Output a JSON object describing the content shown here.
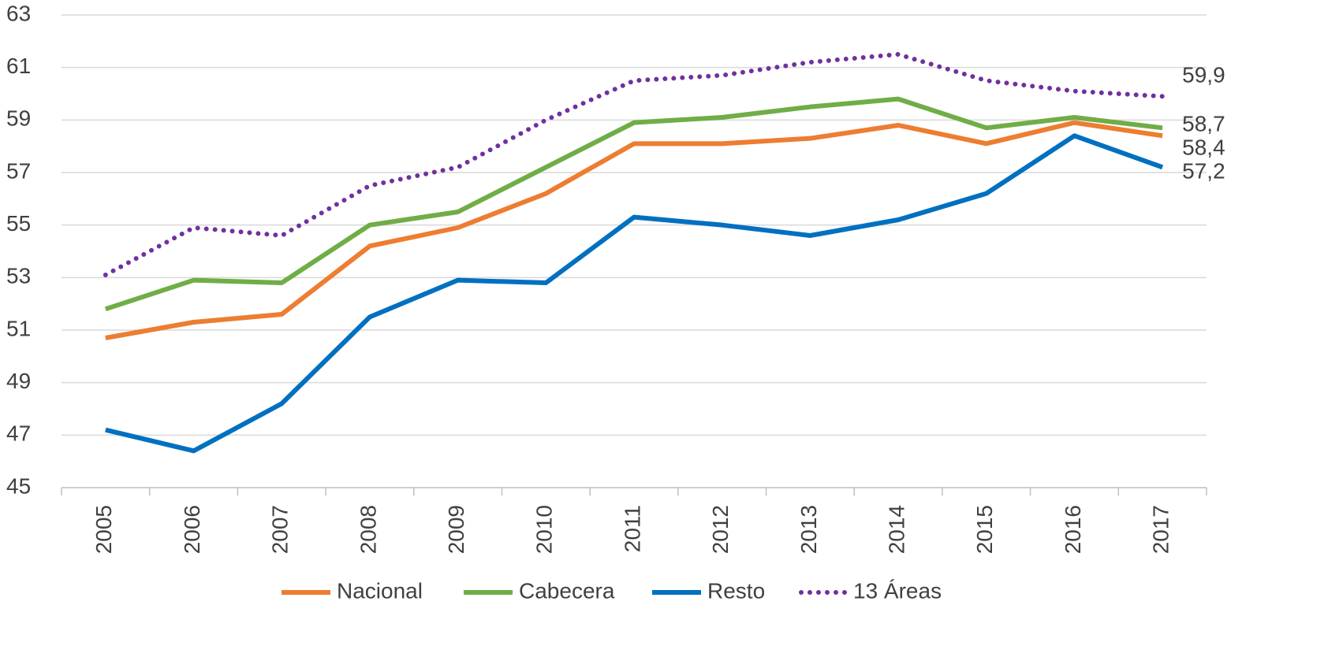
{
  "chart_data": {
    "type": "line",
    "categories": [
      "2005",
      "2006",
      "2007",
      "2008",
      "2009",
      "2010",
      "2011",
      "2012",
      "2013",
      "2014",
      "2015",
      "2016",
      "2017"
    ],
    "series": [
      {
        "name": "Nacional",
        "color": "#ed7d31",
        "values": [
          50.7,
          51.3,
          51.6,
          54.2,
          54.9,
          56.2,
          58.1,
          58.1,
          58.3,
          58.8,
          58.1,
          58.9,
          58.4
        ],
        "value_labels": [
          null,
          null,
          null,
          null,
          null,
          null,
          null,
          null,
          null,
          null,
          null,
          null,
          "58,4"
        ]
      },
      {
        "name": "Cabecera",
        "color": "#70ad47",
        "values": [
          51.8,
          52.9,
          52.8,
          55.0,
          55.5,
          57.2,
          58.9,
          59.1,
          59.5,
          59.8,
          58.7,
          59.1,
          58.7
        ],
        "value_labels": [
          null,
          null,
          null,
          null,
          null,
          null,
          null,
          null,
          null,
          null,
          null,
          null,
          "58,7"
        ]
      },
      {
        "name": "Resto",
        "color": "#0070c0",
        "values": [
          47.2,
          46.4,
          48.2,
          51.5,
          52.9,
          52.8,
          55.3,
          55.0,
          54.6,
          55.2,
          56.2,
          58.4,
          57.2
        ],
        "value_labels": [
          null,
          null,
          null,
          null,
          null,
          null,
          null,
          null,
          null,
          null,
          null,
          null,
          "57,2"
        ]
      },
      {
        "name": "13 Áreas",
        "color": "#7030a0",
        "dotted": true,
        "values": [
          53.1,
          54.9,
          54.6,
          56.5,
          57.2,
          59.0,
          60.5,
          60.7,
          61.2,
          61.5,
          60.5,
          60.1,
          59.9
        ],
        "value_labels": [
          null,
          null,
          null,
          null,
          null,
          null,
          null,
          null,
          null,
          null,
          null,
          null,
          "59,9"
        ]
      }
    ],
    "ylim": [
      45,
      63
    ],
    "yticks": [
      45,
      47,
      49,
      51,
      53,
      55,
      57,
      59,
      61,
      63
    ],
    "grid": true,
    "legend": "bottom"
  }
}
